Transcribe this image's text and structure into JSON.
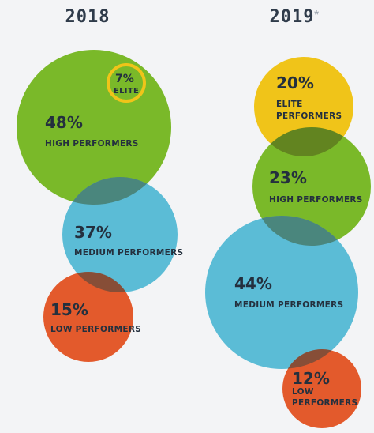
{
  "chart_data": {
    "type": "bubble",
    "groups": [
      {
        "year": "2018",
        "year_mark": "",
        "segments": [
          {
            "value_label": "7%",
            "name": "ELITE",
            "color": "#f0c419",
            "style": "ring"
          },
          {
            "value_label": "48%",
            "name": "HIGH PERFORMERS",
            "color": "#7ab929",
            "style": "filled"
          },
          {
            "value_label": "37%",
            "name": "MEDIUM PERFORMERS",
            "color": "#5bbcd6",
            "style": "filled"
          },
          {
            "value_label": "15%",
            "name": "LOW PERFORMERS",
            "color": "#e35a2c",
            "style": "filled"
          }
        ]
      },
      {
        "year": "2019",
        "year_mark": "*",
        "segments": [
          {
            "value_label": "20%",
            "name": "ELITE PERFORMERS",
            "color": "#f0c419",
            "style": "filled"
          },
          {
            "value_label": "23%",
            "name": "HIGH PERFORMERS",
            "color": "#7ab929",
            "style": "filled"
          },
          {
            "value_label": "44%",
            "name": "MEDIUM PERFORMERS",
            "color": "#5bbcd6",
            "style": "filled"
          },
          {
            "value_label": "12%",
            "name": "LOW PERFORMERS",
            "color": "#e35a2c",
            "style": "filled"
          }
        ]
      }
    ]
  }
}
